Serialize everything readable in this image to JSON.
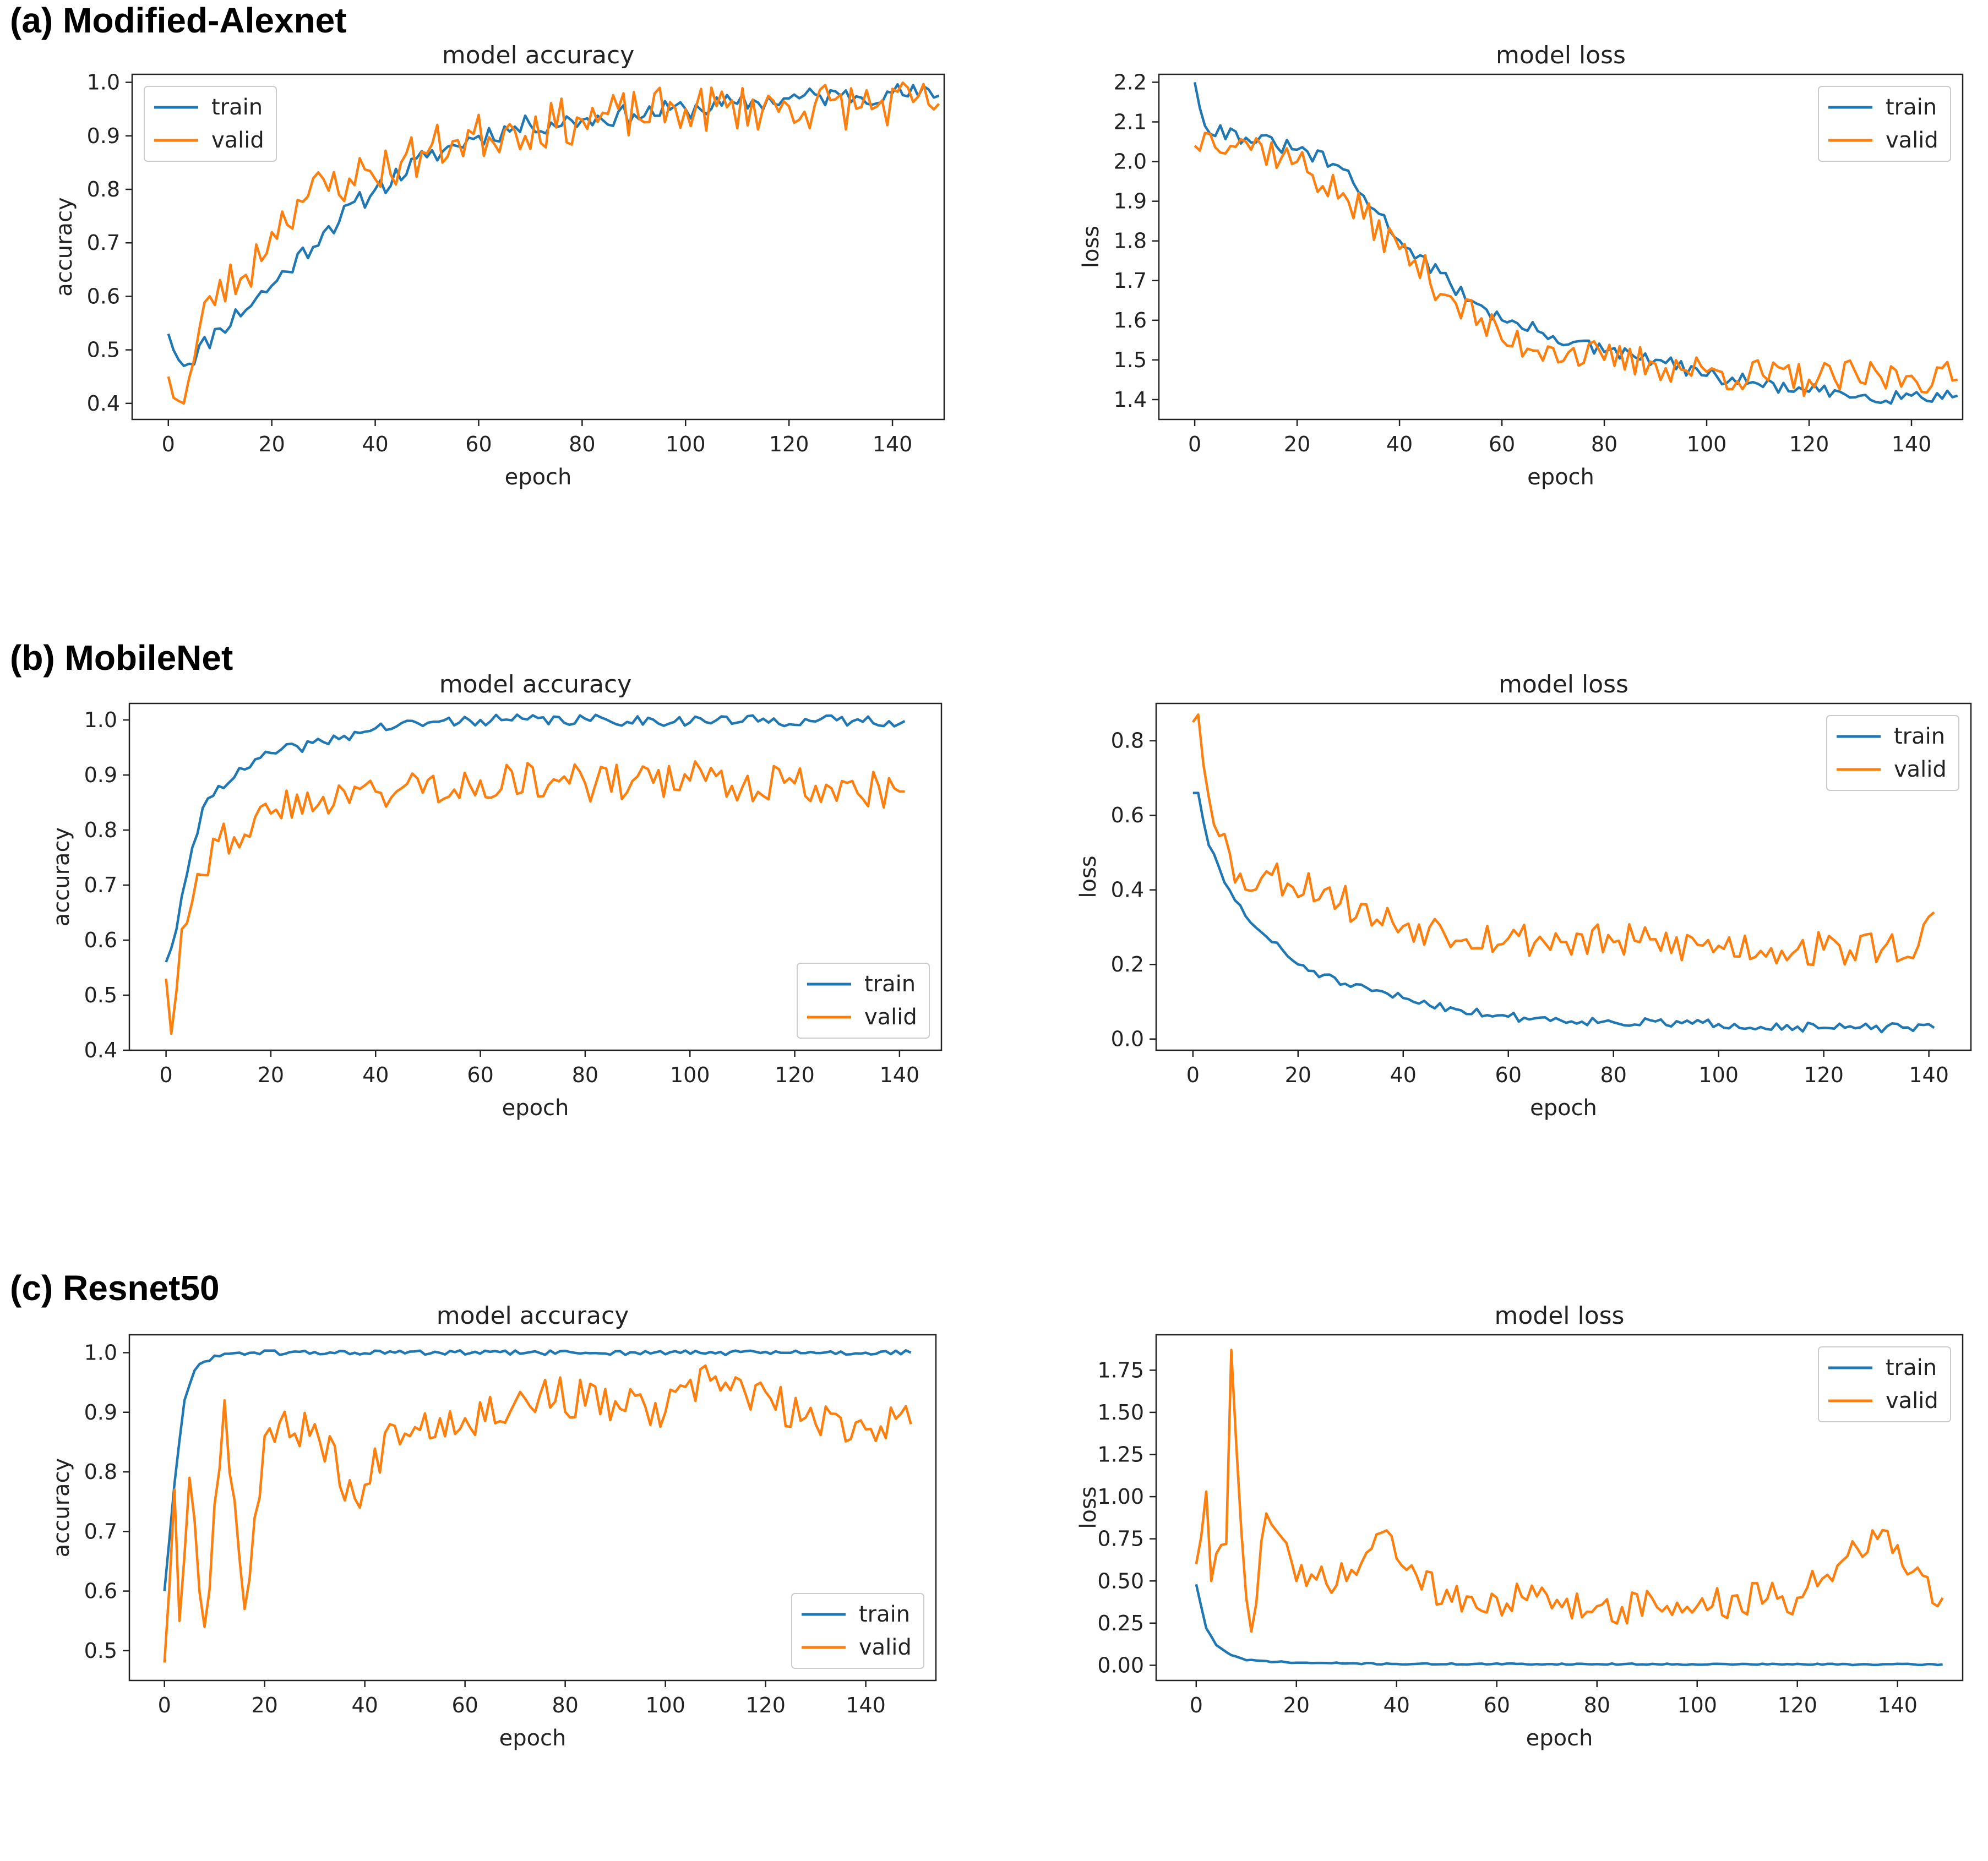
{
  "figure": {
    "rows": [
      {
        "label": "(a) Modified-Alexnet"
      },
      {
        "label": "(b) MobileNet"
      },
      {
        "label": "(c) Resnet50"
      }
    ]
  },
  "colors": {
    "train": "#1f77b4",
    "valid": "#ff7f0e",
    "axis": "#222222"
  },
  "chart_data": [
    {
      "id": "alexnet-accuracy",
      "type": "line",
      "title": "model accuracy",
      "xlabel": "epoch",
      "ylabel": "accuracy",
      "xlim": [
        -7,
        150
      ],
      "ylim": [
        0.37,
        1.015
      ],
      "xticks": [
        0,
        20,
        40,
        60,
        80,
        100,
        120,
        140
      ],
      "yticks": [
        0.4,
        0.5,
        0.6,
        0.7,
        0.8,
        0.9,
        1.0
      ],
      "ytick_decimals": 1,
      "legend": {
        "position": "upper-left",
        "entries": [
          "train",
          "valid"
        ]
      },
      "series": [
        {
          "name": "train",
          "n": 150,
          "anchors": [
            [
              0,
              0.53
            ],
            [
              3,
              0.47
            ],
            [
              10,
              0.54
            ],
            [
              20,
              0.62
            ],
            [
              30,
              0.72
            ],
            [
              40,
              0.8
            ],
            [
              50,
              0.86
            ],
            [
              60,
              0.9
            ],
            [
              70,
              0.92
            ],
            [
              80,
              0.93
            ],
            [
              90,
              0.94
            ],
            [
              100,
              0.95
            ],
            [
              110,
              0.96
            ],
            [
              120,
              0.97
            ],
            [
              130,
              0.975
            ],
            [
              140,
              0.98
            ],
            [
              149,
              0.975
            ]
          ],
          "noise": 0.02,
          "seed": 11
        },
        {
          "name": "valid",
          "n": 150,
          "anchors": [
            [
              0,
              0.45
            ],
            [
              3,
              0.4
            ],
            [
              8,
              0.6
            ],
            [
              15,
              0.64
            ],
            [
              20,
              0.72
            ],
            [
              25,
              0.78
            ],
            [
              35,
              0.82
            ],
            [
              45,
              0.85
            ],
            [
              55,
              0.89
            ],
            [
              65,
              0.91
            ],
            [
              80,
              0.93
            ],
            [
              100,
              0.95
            ],
            [
              120,
              0.955
            ],
            [
              149,
              0.96
            ]
          ],
          "noise": 0.045,
          "seed": 23
        }
      ]
    },
    {
      "id": "alexnet-loss",
      "type": "line",
      "title": "model loss",
      "xlabel": "epoch",
      "ylabel": "loss",
      "xlim": [
        -7,
        150
      ],
      "ylim": [
        1.35,
        2.22
      ],
      "xticks": [
        0,
        20,
        40,
        60,
        80,
        100,
        120,
        140
      ],
      "yticks": [
        1.4,
        1.5,
        1.6,
        1.7,
        1.8,
        1.9,
        2.0,
        2.1,
        2.2
      ],
      "ytick_decimals": 1,
      "legend": {
        "position": "upper-right",
        "entries": [
          "train",
          "valid"
        ]
      },
      "series": [
        {
          "name": "train",
          "n": 150,
          "anchors": [
            [
              0,
              2.2
            ],
            [
              2,
              2.09
            ],
            [
              10,
              2.06
            ],
            [
              20,
              2.03
            ],
            [
              28,
              1.99
            ],
            [
              35,
              1.88
            ],
            [
              42,
              1.78
            ],
            [
              50,
              1.69
            ],
            [
              60,
              1.6
            ],
            [
              70,
              1.56
            ],
            [
              80,
              1.52
            ],
            [
              90,
              1.5
            ],
            [
              100,
              1.46
            ],
            [
              110,
              1.44
            ],
            [
              120,
              1.42
            ],
            [
              130,
              1.41
            ],
            [
              140,
              1.41
            ],
            [
              149,
              1.41
            ]
          ],
          "noise": 0.02,
          "seed": 31
        },
        {
          "name": "valid",
          "n": 150,
          "anchors": [
            [
              0,
              2.04
            ],
            [
              3,
              2.07
            ],
            [
              10,
              2.05
            ],
            [
              20,
              2.0
            ],
            [
              30,
              1.9
            ],
            [
              40,
              1.78
            ],
            [
              50,
              1.66
            ],
            [
              60,
              1.55
            ],
            [
              70,
              1.53
            ],
            [
              80,
              1.5
            ],
            [
              90,
              1.49
            ],
            [
              100,
              1.47
            ],
            [
              120,
              1.45
            ],
            [
              140,
              1.46
            ],
            [
              149,
              1.45
            ]
          ],
          "noise": 0.045,
          "seed": 37
        }
      ]
    },
    {
      "id": "mobilenet-accuracy",
      "type": "line",
      "title": "model accuracy",
      "xlabel": "epoch",
      "ylabel": "accuracy",
      "xlim": [
        -7,
        148
      ],
      "ylim": [
        0.4,
        1.03
      ],
      "xticks": [
        0,
        20,
        40,
        60,
        80,
        100,
        120,
        140
      ],
      "yticks": [
        0.4,
        0.5,
        0.6,
        0.7,
        0.8,
        0.9,
        1.0
      ],
      "ytick_decimals": 1,
      "legend": {
        "position": "lower-right",
        "entries": [
          "train",
          "valid"
        ]
      },
      "series": [
        {
          "name": "train",
          "n": 142,
          "anchors": [
            [
              0,
              0.56
            ],
            [
              2,
              0.62
            ],
            [
              4,
              0.72
            ],
            [
              7,
              0.84
            ],
            [
              10,
              0.88
            ],
            [
              15,
              0.91
            ],
            [
              20,
              0.94
            ],
            [
              30,
              0.96
            ],
            [
              40,
              0.985
            ],
            [
              50,
              0.995
            ],
            [
              60,
              1.0
            ],
            [
              141,
              0.998
            ]
          ],
          "noise": 0.01,
          "seed": 41
        },
        {
          "name": "valid",
          "n": 142,
          "anchors": [
            [
              0,
              0.53
            ],
            [
              1,
              0.43
            ],
            [
              3,
              0.62
            ],
            [
              6,
              0.72
            ],
            [
              10,
              0.78
            ],
            [
              20,
              0.83
            ],
            [
              30,
              0.86
            ],
            [
              40,
              0.87
            ],
            [
              60,
              0.89
            ],
            [
              80,
              0.885
            ],
            [
              100,
              0.89
            ],
            [
              120,
              0.885
            ],
            [
              141,
              0.87
            ]
          ],
          "noise": 0.035,
          "seed": 43
        }
      ]
    },
    {
      "id": "mobilenet-loss",
      "type": "line",
      "title": "model loss",
      "xlabel": "epoch",
      "ylabel": "loss",
      "xlim": [
        -7,
        148
      ],
      "ylim": [
        -0.03,
        0.9
      ],
      "xticks": [
        0,
        20,
        40,
        60,
        80,
        100,
        120,
        140
      ],
      "yticks": [
        0.0,
        0.2,
        0.4,
        0.6,
        0.8
      ],
      "ytick_decimals": 1,
      "legend": {
        "position": "upper-right",
        "entries": [
          "train",
          "valid"
        ]
      },
      "series": [
        {
          "name": "train",
          "n": 142,
          "anchors": [
            [
              0,
              0.66
            ],
            [
              1,
              0.66
            ],
            [
              3,
              0.52
            ],
            [
              6,
              0.42
            ],
            [
              10,
              0.33
            ],
            [
              15,
              0.26
            ],
            [
              20,
              0.2
            ],
            [
              30,
              0.14
            ],
            [
              40,
              0.11
            ],
            [
              50,
              0.08
            ],
            [
              60,
              0.06
            ],
            [
              80,
              0.045
            ],
            [
              100,
              0.04
            ],
            [
              120,
              0.03
            ],
            [
              141,
              0.03
            ]
          ],
          "noise": 0.012,
          "seed": 51
        },
        {
          "name": "valid",
          "n": 142,
          "anchors": [
            [
              0,
              0.85
            ],
            [
              1,
              0.87
            ],
            [
              3,
              0.65
            ],
            [
              6,
              0.55
            ],
            [
              8,
              0.42
            ],
            [
              15,
              0.44
            ],
            [
              25,
              0.4
            ],
            [
              35,
              0.32
            ],
            [
              45,
              0.3
            ],
            [
              60,
              0.27
            ],
            [
              80,
              0.26
            ],
            [
              100,
              0.25
            ],
            [
              120,
              0.24
            ],
            [
              138,
              0.25
            ],
            [
              141,
              0.34
            ]
          ],
          "noise": 0.05,
          "seed": 53
        }
      ]
    },
    {
      "id": "resnet-accuracy",
      "type": "line",
      "title": "model accuracy",
      "xlabel": "epoch",
      "ylabel": "accuracy",
      "xlim": [
        -7,
        154
      ],
      "ylim": [
        0.45,
        1.03
      ],
      "xticks": [
        0,
        20,
        40,
        60,
        80,
        100,
        120,
        140
      ],
      "yticks": [
        0.5,
        0.6,
        0.7,
        0.8,
        0.9,
        1.0
      ],
      "ytick_decimals": 1,
      "legend": {
        "position": "lower-right",
        "entries": [
          "train",
          "valid"
        ]
      },
      "series": [
        {
          "name": "train",
          "n": 150,
          "anchors": [
            [
              0,
              0.6
            ],
            [
              2,
              0.78
            ],
            [
              4,
              0.92
            ],
            [
              6,
              0.97
            ],
            [
              8,
              0.985
            ],
            [
              10,
              0.995
            ],
            [
              15,
              1.0
            ],
            [
              149,
              1.0
            ]
          ],
          "noise": 0.004,
          "seed": 61
        },
        {
          "name": "valid",
          "n": 150,
          "anchors": [
            [
              0,
              0.48
            ],
            [
              2,
              0.77
            ],
            [
              3,
              0.55
            ],
            [
              5,
              0.79
            ],
            [
              8,
              0.54
            ],
            [
              12,
              0.92
            ],
            [
              16,
              0.57
            ],
            [
              20,
              0.86
            ],
            [
              30,
              0.88
            ],
            [
              39,
              0.74
            ],
            [
              45,
              0.88
            ],
            [
              60,
              0.89
            ],
            [
              75,
              0.93
            ],
            [
              100,
              0.9
            ],
            [
              110,
              0.96
            ],
            [
              130,
              0.88
            ],
            [
              149,
              0.88
            ]
          ],
          "noise": 0.035,
          "seed": 67
        }
      ]
    },
    {
      "id": "resnet-loss",
      "type": "line",
      "title": "model loss",
      "xlabel": "epoch",
      "ylabel": "loss",
      "xlim": [
        -8,
        153
      ],
      "ylim": [
        -0.09,
        1.96
      ],
      "xticks": [
        0,
        20,
        40,
        60,
        80,
        100,
        120,
        140
      ],
      "yticks": [
        0.0,
        0.25,
        0.5,
        0.75,
        1.0,
        1.25,
        1.5,
        1.75
      ],
      "ytick_decimals": 2,
      "legend": {
        "position": "upper-right",
        "entries": [
          "train",
          "valid"
        ]
      },
      "series": [
        {
          "name": "train",
          "n": 150,
          "anchors": [
            [
              0,
              0.48
            ],
            [
              2,
              0.22
            ],
            [
              4,
              0.12
            ],
            [
              7,
              0.06
            ],
            [
              10,
              0.03
            ],
            [
              20,
              0.015
            ],
            [
              40,
              0.008
            ],
            [
              149,
              0.005
            ]
          ],
          "noise": 0.004,
          "seed": 71
        },
        {
          "name": "valid",
          "n": 150,
          "anchors": [
            [
              0,
              0.6
            ],
            [
              2,
              1.03
            ],
            [
              3,
              0.5
            ],
            [
              6,
              0.72
            ],
            [
              7,
              1.87
            ],
            [
              9,
              0.8
            ],
            [
              11,
              0.2
            ],
            [
              14,
              0.9
            ],
            [
              20,
              0.5
            ],
            [
              30,
              0.5
            ],
            [
              38,
              0.8
            ],
            [
              45,
              0.45
            ],
            [
              60,
              0.4
            ],
            [
              80,
              0.35
            ],
            [
              100,
              0.35
            ],
            [
              120,
              0.4
            ],
            [
              135,
              0.8
            ],
            [
              149,
              0.4
            ]
          ],
          "noise": 0.11,
          "seed": 73
        }
      ]
    }
  ]
}
